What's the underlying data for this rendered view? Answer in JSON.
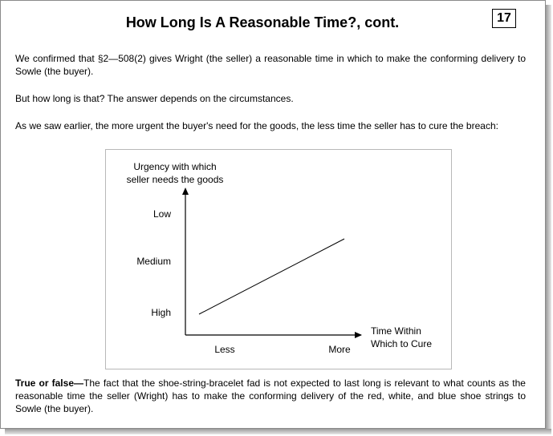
{
  "slide": {
    "title": "How Long Is A Reasonable Time?, cont.",
    "page_number": "17"
  },
  "paragraphs": {
    "p1": "We confirmed that §2—508(2) gives Wright (the seller) a reasonable time in which to make the conforming delivery to Sowle (the buyer).",
    "p2": "But how long is that? The answer depends on the circumstances.",
    "p3": "As we saw earlier, the more urgent the buyer's need for the goods, the less time the seller has to cure the breach:",
    "p4_lead": "True or false",
    "p4_dash": "—",
    "p4_rest": "The fact that the shoe-string-bracelet fad is not expected to last long is relevant to what counts as the reasonable time the seller (Wright) has to make the conforming delivery of the red, white, and blue shoe strings to Sowle (the buyer)."
  },
  "chart_data": {
    "type": "line",
    "ylabel_line1": "Urgency with which",
    "ylabel_line2": "seller needs the goods",
    "xlabel_line1": "Time Within",
    "xlabel_line2": "Which to Cure",
    "y_ticks": [
      "Low",
      "Medium",
      "High"
    ],
    "x_ticks": [
      "Less",
      "More"
    ],
    "series": [
      {
        "x": [
          "Less",
          "More"
        ],
        "y": [
          "High",
          "Low"
        ]
      }
    ]
  }
}
